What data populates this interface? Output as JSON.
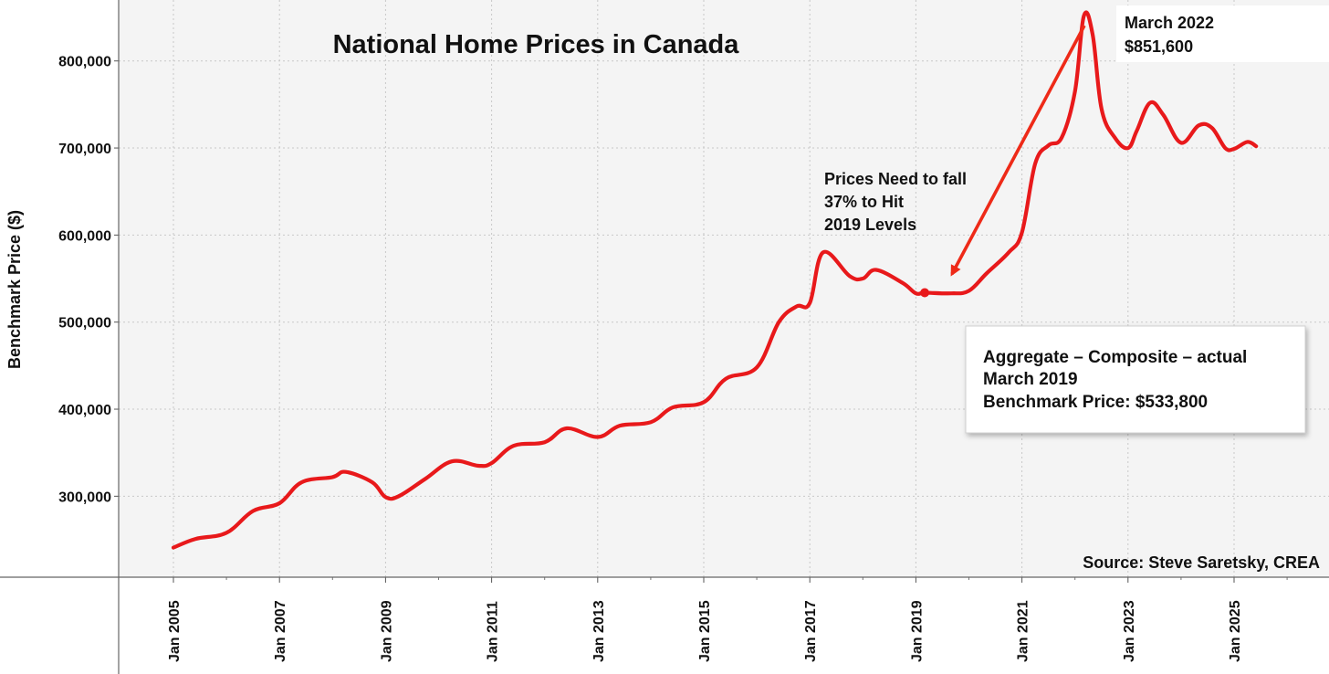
{
  "chart_data": {
    "type": "line",
    "title": "National Home Prices in Canada",
    "ylabel": "Benchmark Price ($)",
    "xlabel": "",
    "ylim": [
      207000,
      870000
    ],
    "y_ticks": [
      300000,
      400000,
      500000,
      600000,
      700000,
      800000
    ],
    "y_tick_labels": [
      "300,000",
      "400,000",
      "500,000",
      "600,000",
      "700,000",
      "800,000"
    ],
    "x_ticks": [
      "2005-01",
      "2007-01",
      "2009-01",
      "2011-01",
      "2013-01",
      "2015-01",
      "2017-01",
      "2019-01",
      "2021-01",
      "2023-01",
      "2025-01"
    ],
    "x_tick_labels": [
      "Jan 2005",
      "Jan 2007",
      "Jan 2009",
      "Jan 2011",
      "Jan 2013",
      "Jan 2015",
      "Jan 2017",
      "Jan 2019",
      "Jan 2021",
      "Jan 2023",
      "Jan 2025"
    ],
    "grid": true,
    "colors": {
      "line": "#e8191b",
      "arrow": "#ee2a18",
      "grid": "#c8c8c8",
      "plot_bg": "#f4f4f4"
    },
    "series": [
      {
        "name": "",
        "points": [
          [
            "2005-01",
            241000
          ],
          [
            "2005-06",
            251000
          ],
          [
            "2006-01",
            258000
          ],
          [
            "2006-07",
            283000
          ],
          [
            "2007-01",
            292000
          ],
          [
            "2007-06",
            316000
          ],
          [
            "2008-01",
            322000
          ],
          [
            "2008-04",
            328000
          ],
          [
            "2008-10",
            316000
          ],
          [
            "2009-01",
            299000
          ],
          [
            "2009-04",
            300000
          ],
          [
            "2009-10",
            320000
          ],
          [
            "2010-04",
            340000
          ],
          [
            "2010-10",
            335000
          ],
          [
            "2011-01",
            338000
          ],
          [
            "2011-06",
            358000
          ],
          [
            "2012-01",
            362000
          ],
          [
            "2012-06",
            378000
          ],
          [
            "2013-01",
            368000
          ],
          [
            "2013-06",
            381000
          ],
          [
            "2014-01",
            385000
          ],
          [
            "2014-06",
            402000
          ],
          [
            "2015-01",
            408000
          ],
          [
            "2015-06",
            435000
          ],
          [
            "2016-01",
            448000
          ],
          [
            "2016-06",
            500000
          ],
          [
            "2016-10",
            518000
          ],
          [
            "2017-01",
            522000
          ],
          [
            "2017-04",
            580000
          ],
          [
            "2017-10",
            553000
          ],
          [
            "2018-01",
            550000
          ],
          [
            "2018-04",
            560000
          ],
          [
            "2018-10",
            545000
          ],
          [
            "2019-01",
            533000
          ],
          [
            "2019-03",
            533800
          ],
          [
            "2019-09",
            533000
          ],
          [
            "2020-01",
            536000
          ],
          [
            "2020-05",
            556000
          ],
          [
            "2020-10",
            580000
          ],
          [
            "2021-01",
            603000
          ],
          [
            "2021-04",
            682000
          ],
          [
            "2021-07",
            703000
          ],
          [
            "2021-10",
            712000
          ],
          [
            "2022-01",
            765000
          ],
          [
            "2022-03",
            851600
          ],
          [
            "2022-05",
            830000
          ],
          [
            "2022-07",
            745000
          ],
          [
            "2022-10",
            712000
          ],
          [
            "2023-01",
            700000
          ],
          [
            "2023-03",
            720000
          ],
          [
            "2023-06",
            752000
          ],
          [
            "2023-09",
            738000
          ],
          [
            "2024-01",
            706000
          ],
          [
            "2024-05",
            726000
          ],
          [
            "2024-08",
            723000
          ],
          [
            "2024-11",
            700000
          ],
          [
            "2025-01",
            699000
          ],
          [
            "2025-04",
            707000
          ],
          [
            "2025-06",
            702000
          ]
        ]
      }
    ],
    "annotations": {
      "peak": {
        "date": "2022-03",
        "lines": [
          "March 2022",
          "$851,600"
        ]
      },
      "fall_note": {
        "lines": [
          "Prices Need to fall",
          "37% to Hit",
          "2019 Levels"
        ]
      },
      "info_box": {
        "lines": [
          "Aggregate – Composite – actual",
          "March 2019",
          "Benchmark Price: $533,800"
        ],
        "marker_date": "2019-03",
        "marker_value": 533800
      },
      "source": "Source: Steve Saretsky, CREA"
    }
  }
}
